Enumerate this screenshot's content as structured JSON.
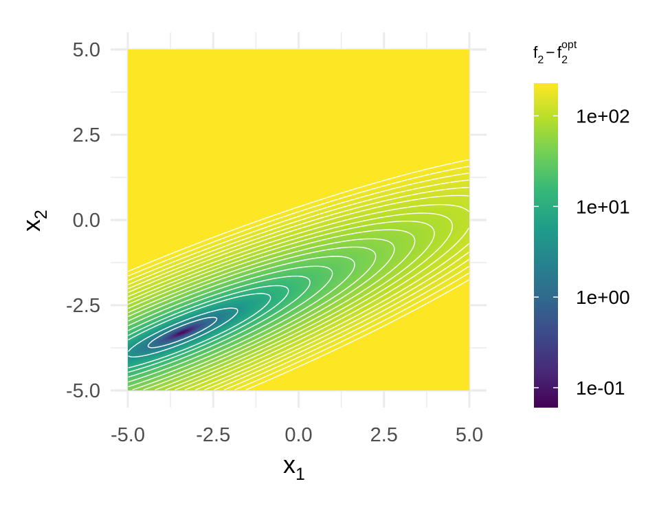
{
  "chart_data": {
    "type": "heatmap",
    "x_variable": "x",
    "x_subscript": "1",
    "y_variable": "x",
    "y_subscript": "2",
    "xlim": [
      -5,
      5
    ],
    "ylim": [
      -5,
      5
    ],
    "x_ticks": [
      {
        "value": -5.0,
        "label": "-5.0"
      },
      {
        "value": -2.5,
        "label": "-2.5"
      },
      {
        "value": 0.0,
        "label": "0.0"
      },
      {
        "value": 2.5,
        "label": "2.5"
      },
      {
        "value": 5.0,
        "label": "5.0"
      }
    ],
    "y_ticks": [
      {
        "value": -5.0,
        "label": "-5.0"
      },
      {
        "value": -2.5,
        "label": "-2.5"
      },
      {
        "value": 0.0,
        "label": "0.0"
      },
      {
        "value": 2.5,
        "label": "2.5"
      },
      {
        "value": 5.0,
        "label": "5.0"
      }
    ],
    "grid": true,
    "surface": {
      "optimum": [
        -3.4,
        -3.3
      ],
      "min_value": 0.06,
      "max_value": 230,
      "log_scale": true
    },
    "contours": {
      "color": "#ffffff",
      "description_levels_log10": [
        0.2,
        0.6,
        1.0,
        1.16,
        1.32,
        1.46,
        1.58,
        1.68,
        1.76,
        1.84,
        1.91,
        1.97,
        2.03,
        2.09,
        2.14,
        2.19,
        2.24,
        2.29,
        2.34
      ]
    },
    "legend": {
      "position": "right",
      "title_main": "f",
      "title_sub": "2",
      "title_minus": "−",
      "title_opt_sub": "2",
      "title_opt_sup": "opt",
      "colormap": "viridis",
      "colors": [
        "#440154",
        "#482878",
        "#3e4989",
        "#31688e",
        "#26828e",
        "#1f9e89",
        "#35b779",
        "#6ece58",
        "#b5de2b",
        "#fde725"
      ],
      "range_log10": [
        -1.22,
        2.36
      ],
      "ticks": [
        {
          "value": 0.1,
          "label": "1e-01"
        },
        {
          "value": 1,
          "label": "1e+00"
        },
        {
          "value": 10,
          "label": "1e+01"
        },
        {
          "value": 100,
          "label": "1e+02"
        }
      ]
    }
  }
}
